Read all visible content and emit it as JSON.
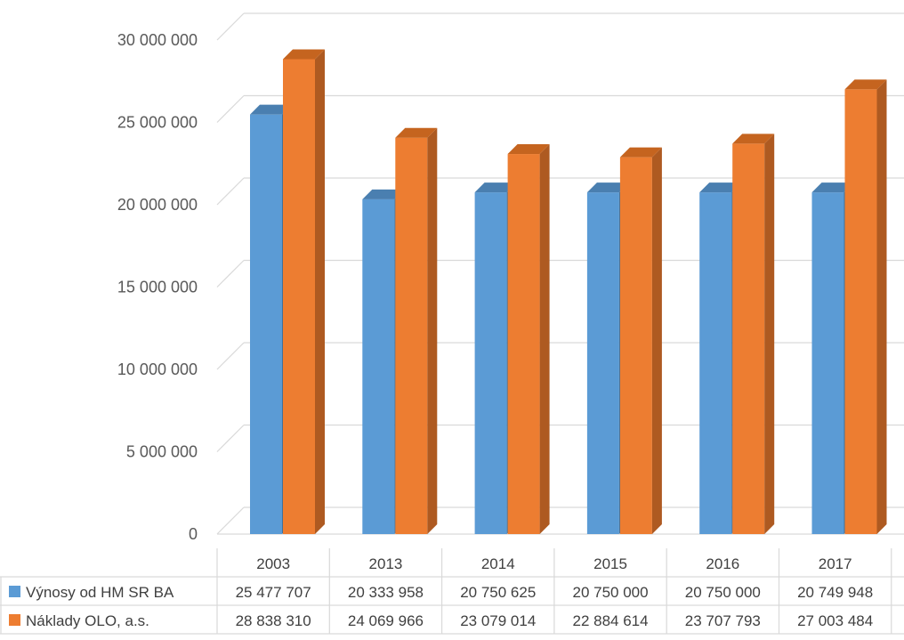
{
  "chart_data": {
    "type": "bar",
    "title": "",
    "xlabel": "",
    "ylabel": "",
    "categories": [
      "2003",
      "2013",
      "2014",
      "2015",
      "2016",
      "2017"
    ],
    "series": [
      {
        "name": "Výnosy od HM SR BA",
        "color": "#5b9bd5",
        "side_color": "#41719c",
        "top_color": "#4a7fb0",
        "values": [
          25477707,
          20333958,
          20750625,
          20750000,
          20750000,
          20749948
        ]
      },
      {
        "name": "Náklady OLO, a.s.",
        "color": "#ed7d31",
        "side_color": "#ae5a21",
        "top_color": "#c5641f",
        "values": [
          28838310,
          24069966,
          23079014,
          22884614,
          23707793,
          27003484
        ]
      }
    ],
    "ylim": [
      0,
      30000000
    ],
    "yticks": [
      0,
      5000000,
      10000000,
      15000000,
      20000000,
      25000000,
      30000000
    ],
    "ytick_labels": [
      "0",
      "5 000 000",
      "10 000 000",
      "15 000 000",
      "20 000 000",
      "25 000 000",
      "30 000 000"
    ],
    "table": {
      "rows": [
        {
          "label": "Výnosy od HM SR BA",
          "cells": [
            "25 477 707",
            "20 333 958",
            "20 750 625",
            "20 750 000",
            "20 750 000",
            "20 749 948"
          ]
        },
        {
          "label": "Náklady OLO, a.s.",
          "cells": [
            "28 838 310",
            "24 069 966",
            "23 079 014",
            "22 884 614",
            "23 707 793",
            "27 003 484"
          ]
        }
      ]
    },
    "grid": true,
    "legend": "data-table",
    "style": "3d-clustered-column"
  }
}
